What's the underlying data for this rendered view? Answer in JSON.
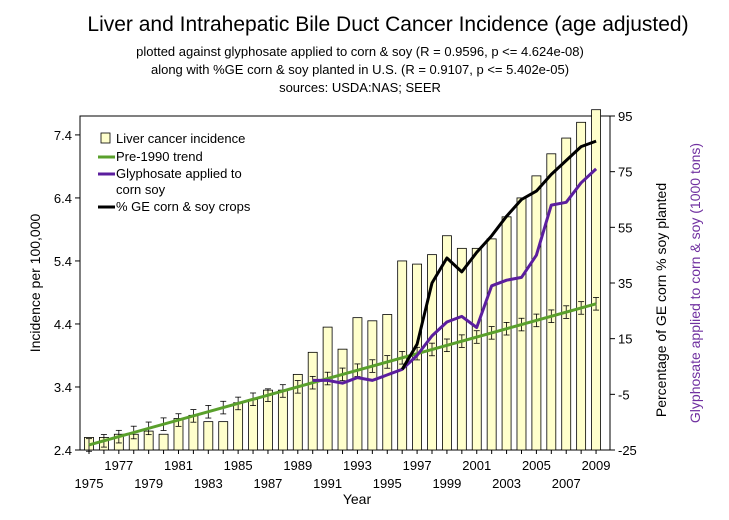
{
  "chart_data": {
    "type": "bar",
    "title": "Liver and Intrahepatic Bile Duct Cancer Incidence (age adjusted)",
    "subtitle_lines": [
      "plotted against glyphosate applied to corn & soy  (R = 0.9596, p <= 4.624e-08)",
      "along with %GE corn & soy planted in U.S. (R = 0.9107, p <= 5.402e-05)",
      "sources: USDA:NAS; SEER"
    ],
    "xlabel": "Year",
    "ylabel_left": "Incidence per 100,000",
    "ylabel_right_1": "Percentage of GE corn % soy planted",
    "ylabel_right_2": "Glyphosate applied to corn & soy (1000 tons)",
    "x_ticks_lower": [
      "1975",
      "1979",
      "1983",
      "1987",
      "1991",
      "1995",
      "1999",
      "2003",
      "2007"
    ],
    "x_ticks_upper": [
      "1977",
      "1981",
      "1985",
      "1989",
      "1993",
      "1997",
      "2001",
      "2005",
      "2009"
    ],
    "left_ticks": [
      "2.4",
      "3.4",
      "4.4",
      "5.4",
      "6.4",
      "7.4"
    ],
    "right_ticks": [
      "-25",
      "-5",
      "15",
      "35",
      "55",
      "75",
      "95"
    ],
    "left_ylim": [
      2.4,
      7.7
    ],
    "right_ylim": [
      -25,
      95
    ],
    "legend_position": "top-left",
    "colors": {
      "bars_fill": "#ffffcc",
      "trend": "#5aa02c",
      "glyphosate": "#5b1e9e",
      "ge": "#000000",
      "right_label_2": "#7030a0"
    },
    "series": [
      {
        "name": "Liver cancer incidence",
        "type": "bar",
        "axis": "left",
        "x": [
          1975,
          1976,
          1977,
          1978,
          1979,
          1980,
          1981,
          1982,
          1983,
          1984,
          1985,
          1986,
          1987,
          1988,
          1989,
          1990,
          1991,
          1992,
          1993,
          1994,
          1995,
          1996,
          1997,
          1998,
          1999,
          2000,
          2001,
          2002,
          2003,
          2004,
          2005,
          2006,
          2007,
          2008,
          2009
        ],
        "values": [
          2.6,
          2.6,
          2.65,
          2.65,
          2.7,
          2.65,
          2.9,
          2.95,
          2.85,
          2.85,
          3.15,
          3.2,
          3.35,
          3.35,
          3.6,
          3.95,
          4.35,
          4.0,
          4.5,
          4.45,
          4.55,
          5.4,
          5.35,
          5.5,
          5.8,
          5.6,
          5.6,
          5.75,
          6.1,
          6.4,
          6.75,
          7.1,
          7.35,
          7.6,
          7.8
        ]
      },
      {
        "name": "Pre-1990 trend",
        "type": "line",
        "axis": "left",
        "x": [
          1975,
          2009
        ],
        "values": [
          2.48,
          4.72
        ]
      },
      {
        "name": "Glyphosate applied to corn  soy",
        "type": "line",
        "axis": "right",
        "x": [
          1990,
          1991,
          1992,
          1993,
          1994,
          1995,
          1996,
          1997,
          1998,
          1999,
          2000,
          2001,
          2002,
          2003,
          2004,
          2005,
          2006,
          2007,
          2008,
          2009
        ],
        "values": [
          0,
          0,
          -1,
          1,
          0,
          2,
          4,
          9,
          16,
          21,
          23,
          19,
          34,
          36,
          37,
          45,
          63,
          64,
          71,
          76
        ]
      },
      {
        "name": "% GE corn & soy crops",
        "type": "line",
        "axis": "right",
        "x": [
          1996,
          1997,
          1998,
          1999,
          2000,
          2001,
          2002,
          2003,
          2004,
          2005,
          2006,
          2007,
          2008,
          2009
        ],
        "values": [
          4,
          13,
          35,
          44,
          39,
          46,
          52,
          59,
          65,
          68,
          74,
          79,
          84,
          86
        ]
      }
    ]
  }
}
